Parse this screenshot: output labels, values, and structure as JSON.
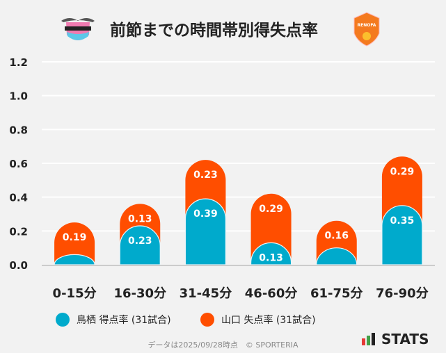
{
  "header": {
    "title": "前節までの時間帯別得失点率",
    "home_logo_text": "sagantosu",
    "away_logo_text": "RENOFA"
  },
  "chart_data": {
    "type": "bar",
    "stacked": true,
    "categories": [
      "0-15分",
      "16-30分",
      "31-45分",
      "46-60分",
      "61-75分",
      "76-90分"
    ],
    "series": [
      {
        "name": "鳥栖 得点率 (31試合)",
        "color": "#00aacc",
        "values": [
          0.06,
          0.23,
          0.39,
          0.13,
          0.1,
          0.35
        ],
        "labels": [
          "",
          "0.23",
          "0.39",
          "0.13",
          "",
          "0.35"
        ]
      },
      {
        "name": "山口 失点率 (31試合)",
        "color": "#ff4e00",
        "values": [
          0.19,
          0.13,
          0.23,
          0.29,
          0.16,
          0.29
        ],
        "labels": [
          "0.19",
          "0.13",
          "0.23",
          "0.29",
          "0.16",
          "0.29"
        ]
      }
    ],
    "ylim": [
      0,
      1.2
    ],
    "yticks": [
      "0.0",
      "0.2",
      "0.4",
      "0.6",
      "0.8",
      "1.0",
      "1.2"
    ],
    "grid": true,
    "legend": "bottom"
  },
  "footer": {
    "note": "データは2025/09/28時点　© SPORTERIA",
    "brand": "STATS"
  }
}
